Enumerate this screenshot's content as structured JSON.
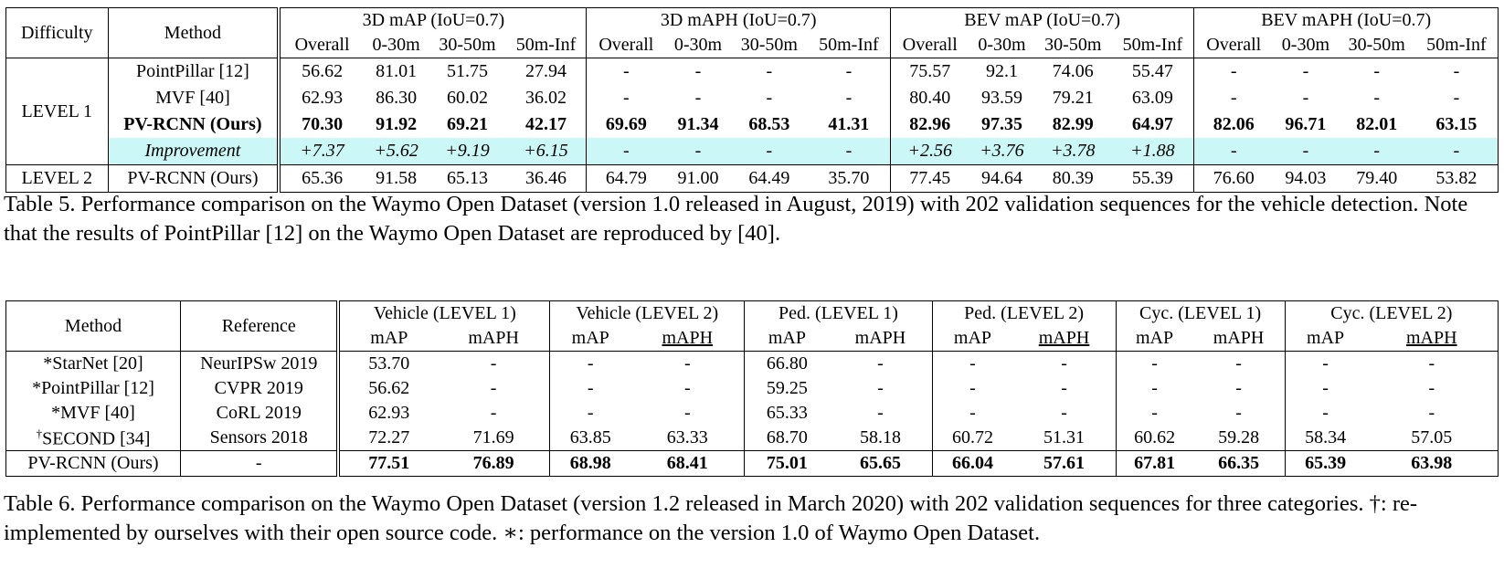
{
  "table5": {
    "col_difficulty": "Difficulty",
    "col_method": "Method",
    "groups": [
      "3D mAP (IoU=0.7)",
      "3D mAPH (IoU=0.7)",
      "BEV mAP (IoU=0.7)",
      "BEV mAPH (IoU=0.7)"
    ],
    "subcols": [
      "Overall",
      "0-30m",
      "30-50m",
      "50m-Inf"
    ],
    "level1_label": "LEVEL 1",
    "level2_label": "LEVEL 2",
    "rows": [
      {
        "method": "PointPillar [12]",
        "values": [
          "56.62",
          "81.01",
          "51.75",
          "27.94",
          "-",
          "-",
          "-",
          "-",
          "75.57",
          "92.1",
          "74.06",
          "55.47",
          "-",
          "-",
          "-",
          "-"
        ]
      },
      {
        "method": "MVF [40]",
        "values": [
          "62.93",
          "86.30",
          "60.02",
          "36.02",
          "-",
          "-",
          "-",
          "-",
          "80.40",
          "93.59",
          "79.21",
          "63.09",
          "-",
          "-",
          "-",
          "-"
        ]
      },
      {
        "method": "PV-RCNN (Ours)",
        "values": [
          "70.30",
          "91.92",
          "69.21",
          "42.17",
          "69.69",
          "91.34",
          "68.53",
          "41.31",
          "82.96",
          "97.35",
          "82.99",
          "64.97",
          "82.06",
          "96.71",
          "82.01",
          "63.15"
        ]
      },
      {
        "method": "Improvement",
        "values": [
          "+7.37",
          "+5.62",
          "+9.19",
          "+6.15",
          "-",
          "-",
          "-",
          "-",
          "+2.56",
          "+3.76",
          "+3.78",
          "+1.88",
          "-",
          "-",
          "-",
          "-"
        ]
      }
    ],
    "level2_row": {
      "method": "PV-RCNN (Ours)",
      "values": [
        "65.36",
        "91.58",
        "65.13",
        "36.46",
        "64.79",
        "91.00",
        "64.49",
        "35.70",
        "77.45",
        "94.64",
        "80.39",
        "55.39",
        "76.60",
        "94.03",
        "79.40",
        "53.82"
      ]
    },
    "caption": "Table 5. Performance comparison on the Waymo Open Dataset (version 1.0 released in August, 2019) with 202 validation sequences for the vehicle detection. Note that the results of PointPillar [12] on the Waymo Open Dataset are reproduced by [40]."
  },
  "table6": {
    "col_method": "Method",
    "col_reference": "Reference",
    "groups": [
      "Vehicle (LEVEL 1)",
      "Vehicle (LEVEL 2)",
      "Ped. (LEVEL 1)",
      "Ped. (LEVEL 2)",
      "Cyc. (LEVEL 1)",
      "Cyc. (LEVEL 2)"
    ],
    "subcols": [
      "mAP",
      "mAPH"
    ],
    "rows": [
      {
        "method": "*StarNet [20]",
        "reference": "NeurIPSw 2019",
        "values": [
          "53.70",
          "-",
          "-",
          "-",
          "66.80",
          "-",
          "-",
          "-",
          "-",
          "-",
          "-",
          "-"
        ]
      },
      {
        "method": "*PointPillar [12]",
        "reference": "CVPR 2019",
        "values": [
          "56.62",
          "-",
          "-",
          "-",
          "59.25",
          "-",
          "-",
          "-",
          "-",
          "-",
          "-",
          "-"
        ]
      },
      {
        "method": "*MVF [40]",
        "reference": "CoRL 2019",
        "values": [
          "62.93",
          "-",
          "-",
          "-",
          "65.33",
          "-",
          "-",
          "-",
          "-",
          "-",
          "-",
          "-"
        ]
      },
      {
        "method": "SECOND [34]",
        "dagger": "†",
        "reference": "Sensors 2018",
        "values": [
          "72.27",
          "71.69",
          "63.85",
          "63.33",
          "68.70",
          "58.18",
          "60.72",
          "51.31",
          "60.62",
          "59.28",
          "58.34",
          "57.05"
        ]
      }
    ],
    "ours_row": {
      "method": "PV-RCNN (Ours)",
      "reference": "-",
      "values": [
        "77.51",
        "76.89",
        "68.98",
        "68.41",
        "75.01",
        "65.65",
        "66.04",
        "57.61",
        "67.81",
        "66.35",
        "65.39",
        "63.98"
      ]
    },
    "caption": "Table 6. Performance comparison on the Waymo Open Dataset (version 1.2 released in March 2020) with 202 validation sequences for three categories. †: re-implemented by ourselves with their open source code. ∗: performance on the version 1.0 of Waymo Open Dataset."
  }
}
